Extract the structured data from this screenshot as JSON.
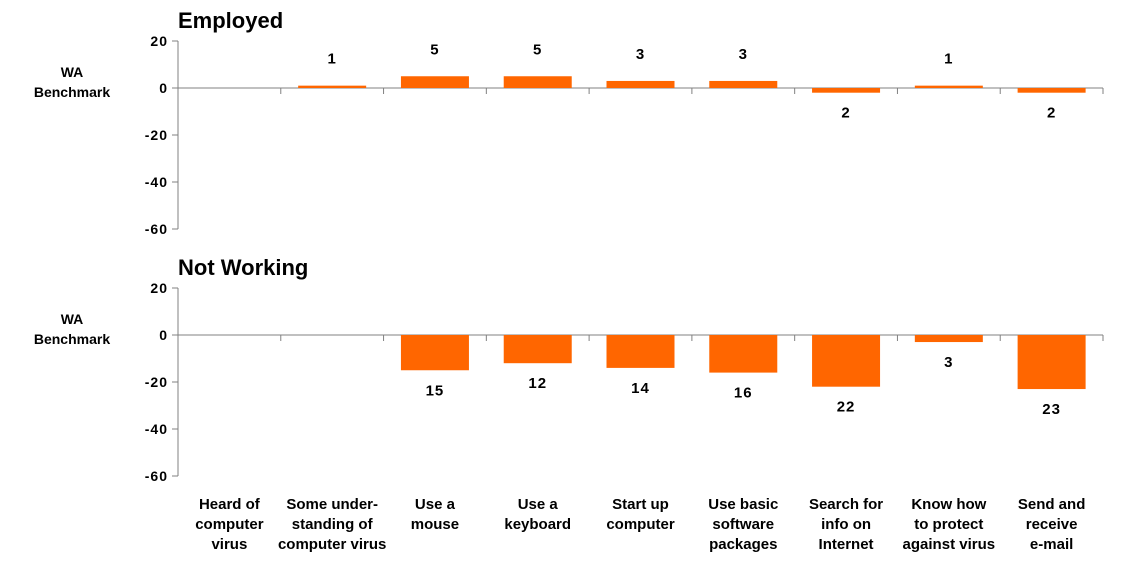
{
  "chart_data": [
    {
      "type": "bar",
      "title": "Employed",
      "ylabel_lines": [
        "WA",
        "Benchmark"
      ],
      "ylim": [
        -60,
        20
      ],
      "yticks": [
        "20",
        "0",
        "-20",
        "-40",
        "-60"
      ],
      "ytick_values": [
        20,
        0,
        -20,
        -40,
        -60
      ],
      "categories": [
        "Heard of computer virus",
        "Some under-standing of computer virus",
        "Use a mouse",
        "Use a keyboard",
        "Start up computer",
        "Use basic software packages",
        "Search for info on Internet",
        "Know how to protect against virus",
        "Send and receive e-mail"
      ],
      "values": [
        null,
        1,
        5,
        5,
        3,
        3,
        -2,
        1,
        -2
      ],
      "data_labels": [
        "",
        "1",
        "5",
        "5",
        "3",
        "3",
        "2",
        "1",
        "2"
      ],
      "bar_color": "#ff6600"
    },
    {
      "type": "bar",
      "title": "Not Working",
      "ylabel_lines": [
        "WA",
        "Benchmark"
      ],
      "ylim": [
        -60,
        20
      ],
      "yticks": [
        "20",
        "0",
        "-20",
        "-40",
        "-60"
      ],
      "ytick_values": [
        20,
        0,
        -20,
        -40,
        -60
      ],
      "categories": [
        "Heard of computer virus",
        "Some under-standing of computer virus",
        "Use a mouse",
        "Use a keyboard",
        "Start up computer",
        "Use basic software packages",
        "Search for info on Internet",
        "Know how to protect against virus",
        "Send and receive e-mail"
      ],
      "values": [
        null,
        null,
        -15,
        -12,
        -14,
        -16,
        -22,
        -3,
        -23
      ],
      "data_labels": [
        "",
        "",
        "15",
        "12",
        "14",
        "16",
        "22",
        "3",
        "23"
      ],
      "bar_color": "#ff6600"
    }
  ],
  "x_axis_labels": [
    [
      "Heard of",
      "computer",
      "virus"
    ],
    [
      "Some under-",
      "standing of",
      "computer virus"
    ],
    [
      "Use a",
      "mouse"
    ],
    [
      "Use a",
      "keyboard"
    ],
    [
      "Start up",
      "computer"
    ],
    [
      "Use basic",
      "software",
      "packages"
    ],
    [
      "Search for",
      "info on",
      "Internet"
    ],
    [
      "Know how",
      "to protect",
      "against virus"
    ],
    [
      "Send and",
      "receive",
      "e-mail"
    ]
  ]
}
